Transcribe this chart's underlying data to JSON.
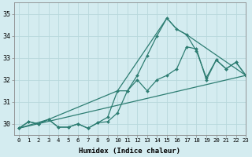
{
  "title": "",
  "xlabel": "Humidex (Indice chaleur)",
  "ylabel": "",
  "bg_color": "#d4ecf0",
  "line_color": "#2d7d72",
  "grid_color": "#b8d8dc",
  "xlim": [
    -0.5,
    23
  ],
  "ylim": [
    29.5,
    35.5
  ],
  "yticks": [
    30,
    31,
    32,
    33,
    34,
    35
  ],
  "xticks": [
    0,
    1,
    2,
    3,
    4,
    5,
    6,
    7,
    8,
    9,
    10,
    11,
    12,
    13,
    14,
    15,
    16,
    17,
    18,
    19,
    20,
    21,
    22,
    23
  ],
  "series_jagged_x": [
    0,
    1,
    2,
    3,
    4,
    5,
    6,
    7,
    8,
    9,
    10,
    11,
    12,
    13,
    14,
    15,
    16,
    17,
    18,
    19,
    20,
    21,
    22,
    23
  ],
  "series_jagged_y": [
    29.8,
    30.1,
    30.0,
    30.2,
    29.85,
    29.85,
    30.0,
    29.8,
    30.05,
    30.3,
    31.5,
    31.5,
    32.2,
    33.1,
    34.0,
    34.8,
    34.3,
    34.05,
    33.3,
    32.1,
    32.9,
    32.5,
    32.8,
    32.2
  ],
  "series_smooth_x": [
    0,
    1,
    2,
    3,
    4,
    5,
    6,
    7,
    8,
    9,
    10,
    11,
    12,
    13,
    14,
    15,
    16,
    17,
    18,
    19,
    20,
    21,
    22,
    23
  ],
  "series_smooth_y": [
    29.8,
    30.1,
    30.0,
    30.2,
    29.85,
    29.85,
    30.0,
    29.8,
    30.05,
    30.1,
    30.5,
    31.5,
    32.0,
    31.5,
    32.0,
    32.2,
    32.5,
    33.5,
    33.4,
    32.0,
    32.9,
    32.5,
    32.8,
    32.2
  ],
  "series_line_x": [
    0,
    3,
    10,
    15,
    16,
    17,
    23
  ],
  "series_line_y": [
    29.8,
    30.2,
    31.5,
    34.8,
    34.3,
    34.05,
    32.2
  ],
  "series_trend_x": [
    0,
    23
  ],
  "series_trend_y": [
    29.8,
    32.2
  ]
}
